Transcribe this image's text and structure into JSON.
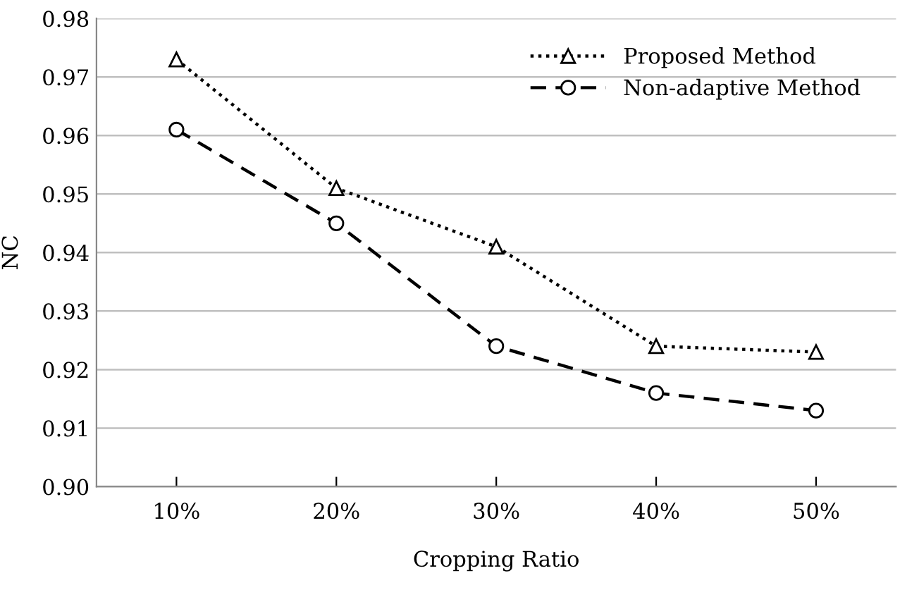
{
  "chart_data": {
    "type": "line",
    "xlabel": "Cropping Ratio",
    "ylabel": "NC",
    "categories": [
      "10%",
      "20%",
      "30%",
      "40%",
      "50%"
    ],
    "series": [
      {
        "name": "Proposed Method",
        "color": "#000000",
        "values": [
          0.973,
          0.951,
          0.941,
          0.924,
          0.923
        ],
        "marker": "triangle",
        "line_style": "dotted"
      },
      {
        "name": "Non-adaptive Method",
        "color": "#000000",
        "values": [
          0.961,
          0.945,
          0.924,
          0.916,
          0.913
        ],
        "marker": "circle",
        "line_style": "dashed"
      }
    ],
    "ylim": [
      0.9,
      0.98
    ],
    "yticks": [
      {
        "value": 0.9,
        "label": "0.90"
      },
      {
        "value": 0.91,
        "label": "0.91"
      },
      {
        "value": 0.92,
        "label": "0.92"
      },
      {
        "value": 0.93,
        "label": "0.93"
      },
      {
        "value": 0.94,
        "label": "0.94"
      },
      {
        "value": 0.95,
        "label": "0.95"
      },
      {
        "value": 0.96,
        "label": "0.96"
      },
      {
        "value": 0.97,
        "label": "0.97"
      },
      {
        "value": 0.98,
        "label": "0.98"
      }
    ],
    "grid": "y",
    "legend": "top right"
  }
}
